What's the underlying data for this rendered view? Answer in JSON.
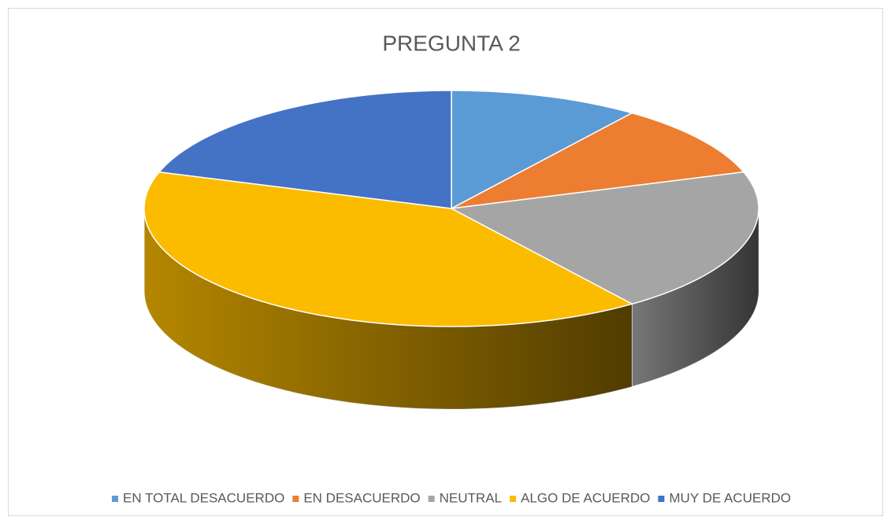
{
  "chart_data": {
    "type": "pie",
    "title": "PREGUNTA 2",
    "categories": [
      "EN TOTAL DESACUERDO",
      "EN DESACUERDO",
      "NEUTRAL",
      "ALGO DE ACUERDO",
      "MUY DE ACUERDO"
    ],
    "values": [
      10,
      10,
      20,
      40,
      20
    ],
    "colors": [
      "#5b9bd5",
      "#ed7d31",
      "#a5a5a5",
      "#fbbc00",
      "#4472c4"
    ],
    "legend": "bottom"
  }
}
